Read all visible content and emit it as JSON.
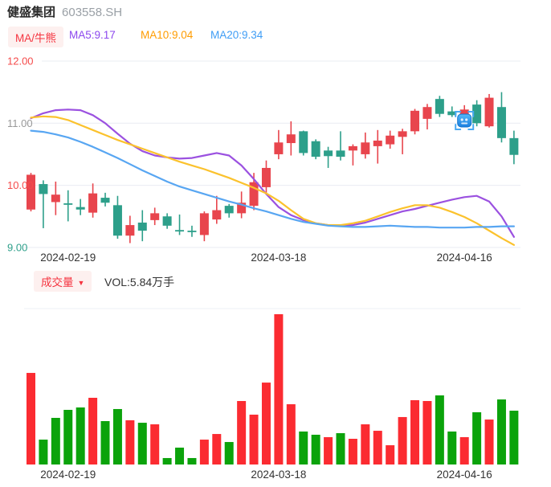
{
  "header": {
    "title": "健盛集团",
    "code": "603558.SH"
  },
  "legend": {
    "badge": "MA/牛熊",
    "ma5": "MA5:9.17",
    "ma10": "MA10:9.04",
    "ma20": "MA20:9.34"
  },
  "volume_header": {
    "badge": "成交量",
    "caret": "▼",
    "vol_label": "VOL:5.84万手"
  },
  "colors": {
    "candle_up": "#e8454d",
    "candle_down": "#2d9f8a",
    "vol_up": "#fb2b31",
    "vol_down": "#0ba30b",
    "ma5_line": "#9b51e0",
    "ma10_line": "#fbc22d",
    "ma20_line": "#58a6f2",
    "grid": "#e9ecf2",
    "pane_line": "#eef1f6",
    "tick_red": "#f54b4b",
    "tick_gray": "#999999",
    "tick_green": "#2d9f8a",
    "axis_text": "#333333",
    "marker_fill_top": "#55b8f8",
    "marker_fill_bottom": "#1a7fe0",
    "marker_bracket": "#4aa9f2"
  },
  "marker": {
    "candle_index": 35
  },
  "chart_data": {
    "type": "candlestick+volume",
    "title": "健盛集团 603558.SH",
    "ylim": [
      9.0,
      12.0
    ],
    "grid": true,
    "y_ticks": [
      {
        "label": "12.00",
        "price": 12.0,
        "color": "#f54b4b"
      },
      {
        "label": "11.00",
        "price": 11.0,
        "color": "#999999"
      },
      {
        "label": "10.00",
        "price": 10.0,
        "color": "#f54b4b"
      },
      {
        "label": "9.00",
        "price": 9.0,
        "color": "#2d9f8a"
      }
    ],
    "x_labels": [
      {
        "text": "2024-02-19",
        "candle_index": 3
      },
      {
        "text": "2024-03-18",
        "candle_index": 20
      },
      {
        "text": "2024-04-16",
        "candle_index": 35
      }
    ],
    "ma5_last": 9.17,
    "ma10_last": 9.04,
    "ma20_last": 9.34,
    "volume_last_label_wan": 5.84,
    "vol_axis_max_wan": 16.31,
    "candle_fields": [
      "open",
      "high",
      "low",
      "close",
      "volume_wan",
      "candle_color",
      "volume_color"
    ],
    "candles": [
      [
        9.61,
        10.2,
        9.58,
        10.17,
        9.94,
        "u",
        "u"
      ],
      [
        10.02,
        10.08,
        9.31,
        9.86,
        2.7,
        "d",
        "d"
      ],
      [
        9.73,
        10.06,
        9.52,
        9.85,
        5.06,
        "u",
        "d"
      ],
      [
        9.71,
        9.92,
        9.42,
        9.69,
        5.93,
        "d",
        "d"
      ],
      [
        9.65,
        9.78,
        9.52,
        9.61,
        6.19,
        "d",
        "d"
      ],
      [
        9.56,
        10.03,
        9.48,
        9.87,
        7.24,
        "u",
        "u"
      ],
      [
        9.8,
        9.88,
        9.66,
        9.72,
        4.71,
        "d",
        "d"
      ],
      [
        9.68,
        9.83,
        9.14,
        9.19,
        6.02,
        "d",
        "d"
      ],
      [
        9.19,
        9.51,
        9.07,
        9.36,
        4.8,
        "u",
        "u"
      ],
      [
        9.4,
        9.6,
        9.1,
        9.27,
        4.53,
        "d",
        "d"
      ],
      [
        9.44,
        9.64,
        9.36,
        9.55,
        4.36,
        "u",
        "u"
      ],
      [
        9.5,
        9.55,
        9.3,
        9.35,
        0.7,
        "d",
        "d"
      ],
      [
        9.28,
        9.53,
        9.2,
        9.26,
        1.83,
        "d",
        "d"
      ],
      [
        9.27,
        9.35,
        9.17,
        9.25,
        0.7,
        "d",
        "d"
      ],
      [
        9.2,
        9.58,
        9.1,
        9.55,
        2.7,
        "u",
        "u"
      ],
      [
        9.45,
        9.83,
        9.38,
        9.6,
        3.31,
        "u",
        "u"
      ],
      [
        9.67,
        9.7,
        9.48,
        9.55,
        2.44,
        "d",
        "d"
      ],
      [
        9.55,
        9.9,
        9.47,
        9.72,
        6.89,
        "u",
        "u"
      ],
      [
        9.67,
        10.2,
        9.6,
        10.05,
        5.41,
        "u",
        "u"
      ],
      [
        9.97,
        10.4,
        9.87,
        10.28,
        8.89,
        "u",
        "u"
      ],
      [
        10.5,
        10.89,
        10.42,
        10.69,
        16.31,
        "u",
        "u"
      ],
      [
        10.68,
        11.03,
        10.48,
        10.82,
        6.54,
        "u",
        "u"
      ],
      [
        10.87,
        10.88,
        10.48,
        10.52,
        3.58,
        "d",
        "d"
      ],
      [
        10.71,
        10.74,
        10.42,
        10.46,
        3.23,
        "d",
        "d"
      ],
      [
        10.56,
        10.62,
        10.28,
        10.47,
        2.97,
        "d",
        "u"
      ],
      [
        10.56,
        10.87,
        10.4,
        10.46,
        3.4,
        "d",
        "d"
      ],
      [
        10.56,
        10.66,
        10.32,
        10.63,
        2.79,
        "u",
        "u"
      ],
      [
        10.5,
        10.85,
        10.43,
        10.69,
        4.36,
        "u",
        "u"
      ],
      [
        10.63,
        10.89,
        10.35,
        10.72,
        3.66,
        "u",
        "u"
      ],
      [
        10.66,
        10.88,
        10.59,
        10.8,
        2.09,
        "u",
        "u"
      ],
      [
        10.78,
        10.91,
        10.5,
        10.87,
        5.15,
        "u",
        "u"
      ],
      [
        10.87,
        11.23,
        10.82,
        11.2,
        6.98,
        "u",
        "u"
      ],
      [
        11.07,
        11.31,
        10.9,
        11.26,
        6.89,
        "u",
        "u"
      ],
      [
        11.39,
        11.44,
        11.1,
        11.15,
        7.5,
        "d",
        "d"
      ],
      [
        11.19,
        11.27,
        11.1,
        11.13,
        3.58,
        "d",
        "d"
      ],
      [
        11.08,
        11.29,
        11.02,
        11.22,
        2.97,
        "u",
        "u"
      ],
      [
        11.3,
        11.37,
        10.95,
        11.0,
        5.67,
        "d",
        "d"
      ],
      [
        10.95,
        11.47,
        10.93,
        11.41,
        4.88,
        "u",
        "u"
      ],
      [
        11.26,
        11.5,
        10.69,
        10.76,
        7.06,
        "d",
        "d"
      ],
      [
        10.76,
        10.88,
        10.34,
        10.49,
        5.84,
        "d",
        "d"
      ]
    ],
    "series": [
      {
        "name": "MA5",
        "color": "#9b51e0",
        "values": [
          11.08,
          11.16,
          11.21,
          11.22,
          11.21,
          11.13,
          11.0,
          10.83,
          10.67,
          10.55,
          10.48,
          10.45,
          10.43,
          10.44,
          10.48,
          10.52,
          10.48,
          10.32,
          10.1,
          9.86,
          9.65,
          9.52,
          9.44,
          9.39,
          9.36,
          9.35,
          9.36,
          9.4,
          9.46,
          9.52,
          9.58,
          9.62,
          9.67,
          9.72,
          9.77,
          9.81,
          9.83,
          9.74,
          9.5,
          9.17
        ]
      },
      {
        "name": "MA10",
        "color": "#fbc22d",
        "values": [
          11.09,
          11.11,
          11.1,
          11.05,
          10.97,
          10.89,
          10.81,
          10.73,
          10.66,
          10.59,
          10.52,
          10.45,
          10.38,
          10.32,
          10.26,
          10.19,
          10.12,
          10.04,
          9.96,
          9.87,
          9.75,
          9.6,
          9.46,
          9.39,
          9.36,
          9.36,
          9.39,
          9.43,
          9.5,
          9.57,
          9.63,
          9.68,
          9.68,
          9.64,
          9.57,
          9.49,
          9.39,
          9.27,
          9.15,
          9.04
        ]
      },
      {
        "name": "MA20",
        "color": "#58a6f2",
        "values": [
          10.88,
          10.86,
          10.82,
          10.77,
          10.7,
          10.62,
          10.53,
          10.44,
          10.34,
          10.24,
          10.15,
          10.06,
          9.98,
          9.92,
          9.86,
          9.8,
          9.74,
          9.69,
          9.63,
          9.58,
          9.52,
          9.46,
          9.41,
          9.38,
          9.35,
          9.34,
          9.33,
          9.33,
          9.34,
          9.35,
          9.34,
          9.33,
          9.33,
          9.32,
          9.32,
          9.32,
          9.33,
          9.33,
          9.34,
          9.34
        ]
      }
    ]
  }
}
